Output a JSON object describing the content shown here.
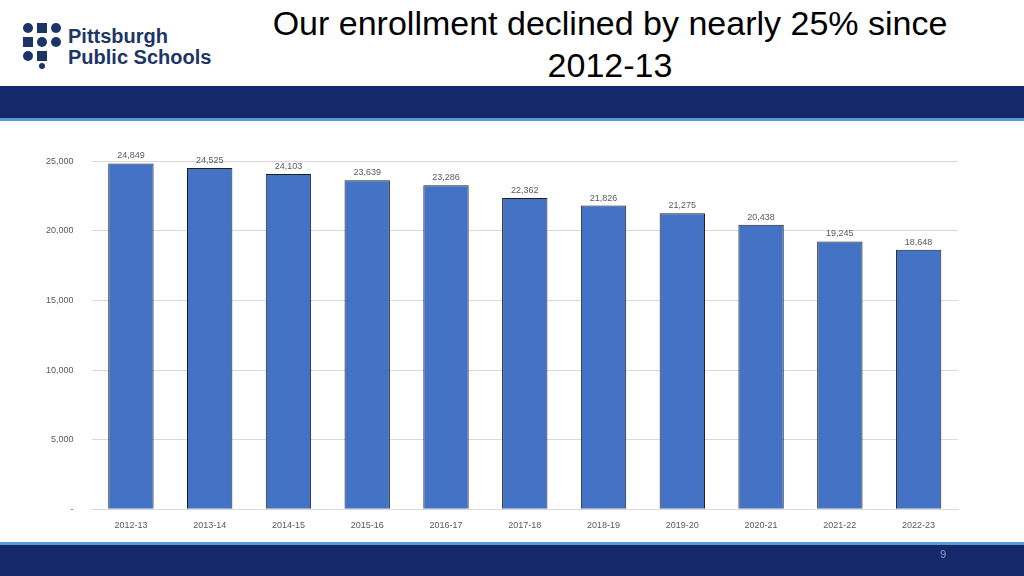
{
  "header": {
    "logo": [
      "Pittsburgh",
      "Public Schools"
    ],
    "page_number": 9
  },
  "chart_data": {
    "type": "bar",
    "title": "Our enrollment declined by nearly 25% since 2012-13",
    "categories": [
      "2012-13",
      "2013-14",
      "2014-15",
      "2015-16",
      "2016-17",
      "2017-18",
      "2018-19",
      "2019-20",
      "2020-21",
      "2021-22",
      "2022-23"
    ],
    "values": [
      24849,
      24525,
      24103,
      23639,
      23286,
      22362,
      21826,
      21275,
      20438,
      19245,
      18648
    ],
    "value_labels": [
      "24,849",
      "24,525",
      "24,103",
      "23,639",
      "23,286",
      "22,362",
      "21,826",
      "21,275",
      "20,438",
      "19,245",
      "18,648"
    ],
    "color": "#4472c4",
    "ylim": [
      0,
      25000
    ],
    "yticks": [
      {
        "value": 0,
        "label": "-"
      },
      {
        "value": 5000,
        "label": "5,000"
      },
      {
        "value": 10000,
        "label": "10,000"
      },
      {
        "value": 15000,
        "label": "15,000"
      },
      {
        "value": 20000,
        "label": "20,000"
      },
      {
        "value": 25000,
        "label": "25,000"
      }
    ],
    "grid": true,
    "data_labels": true
  }
}
